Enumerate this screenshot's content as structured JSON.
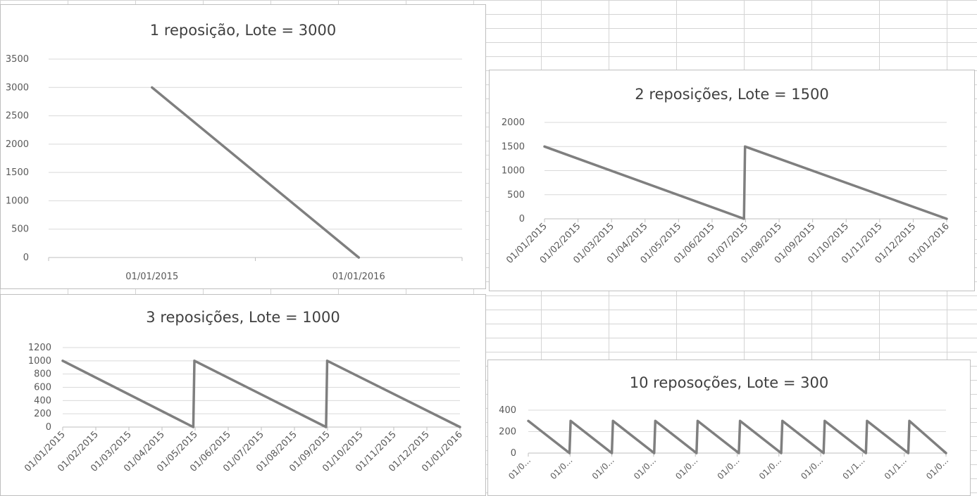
{
  "chart_data": [
    {
      "type": "line",
      "title": "1 reposição, Lote = 3000",
      "categories": [
        "01/01/2015",
        "01/01/2016"
      ],
      "points": [
        [
          "01/01/2015",
          3000
        ],
        [
          "01/01/2016",
          0
        ]
      ],
      "ylim": [
        0,
        3500
      ],
      "yticks": [
        "0",
        "500",
        "1000",
        "1500",
        "2000",
        "2500",
        "3000",
        "3500"
      ],
      "line_color": "#7f7f7f",
      "grid": true
    },
    {
      "type": "line",
      "title": "2 reposições, Lote = 1500",
      "categories": [
        "01/01/2015",
        "01/02/2015",
        "01/03/2015",
        "01/04/2015",
        "01/05/2015",
        "01/06/2015",
        "01/07/2015",
        "01/08/2015",
        "01/09/2015",
        "01/10/2015",
        "01/11/2015",
        "01/12/2015",
        "01/01/2016"
      ],
      "points": [
        [
          "01/01/2015",
          1500
        ],
        [
          "2015-07-01",
          0
        ],
        [
          "2015-07-02",
          1500
        ],
        [
          "01/01/2016",
          0
        ]
      ],
      "ylim": [
        0,
        2000
      ],
      "yticks": [
        "0",
        "500",
        "1000",
        "1500",
        "2000"
      ],
      "line_color": "#7f7f7f",
      "grid": true
    },
    {
      "type": "line",
      "title": "3 reposições, Lote = 1000",
      "categories": [
        "01/01/2015",
        "01/02/2015",
        "01/03/2015",
        "01/04/2015",
        "01/05/2015",
        "01/06/2015",
        "01/07/2015",
        "01/08/2015",
        "01/09/2015",
        "01/10/2015",
        "01/11/2015",
        "01/12/2015",
        "01/01/2016"
      ],
      "points": [
        [
          "01/01/2015",
          1000
        ],
        [
          "2015-05-01",
          0
        ],
        [
          "2015-05-02",
          1000
        ],
        [
          "2015-08-31",
          0
        ],
        [
          "2015-09-01",
          1000
        ],
        [
          "01/01/2016",
          0
        ]
      ],
      "ylim": [
        0,
        1200
      ],
      "yticks": [
        "0",
        "200",
        "400",
        "600",
        "800",
        "1000",
        "1200"
      ],
      "line_color": "#7f7f7f",
      "grid": true
    },
    {
      "type": "line",
      "title": "10 reposoções, Lote = 300",
      "categories": [
        "01/0...",
        "01/0...",
        "01/0...",
        "01/0...",
        "01/0...",
        "01/0...",
        "01/0...",
        "01/0...",
        "01/1...",
        "01/1...",
        "01/0..."
      ],
      "points": [
        [
          "2015-01-01",
          300
        ],
        [
          "2015-02-06",
          0
        ],
        [
          "2015-02-07",
          300
        ],
        [
          "2015-03-15",
          0
        ],
        [
          "2015-03-16",
          300
        ],
        [
          "2015-04-21",
          0
        ],
        [
          "2015-04-22",
          300
        ],
        [
          "2015-05-28",
          0
        ],
        [
          "2015-05-29",
          300
        ],
        [
          "2015-07-04",
          0
        ],
        [
          "2015-07-05",
          300
        ],
        [
          "2015-08-10",
          0
        ],
        [
          "2015-08-11",
          300
        ],
        [
          "2015-09-16",
          0
        ],
        [
          "2015-09-17",
          300
        ],
        [
          "2015-10-23",
          0
        ],
        [
          "2015-10-24",
          300
        ],
        [
          "2015-11-29",
          0
        ],
        [
          "2015-11-30",
          300
        ],
        [
          "2016-01-01",
          0
        ]
      ],
      "ylim": [
        0,
        400
      ],
      "yticks": [
        "0",
        "200",
        "400"
      ],
      "line_color": "#7f7f7f",
      "grid": true
    }
  ]
}
